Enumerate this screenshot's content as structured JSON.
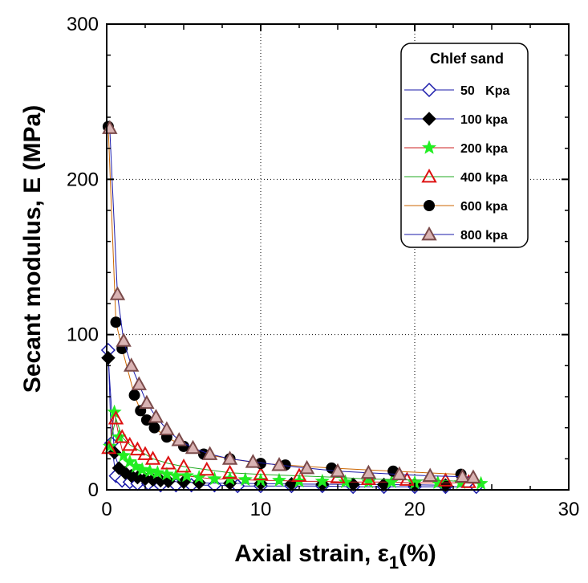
{
  "chart_data": {
    "type": "scatter",
    "title": "",
    "xlabel_main": "Axial strain, ",
    "xlabel_symbol": "ε",
    "xlabel_sub": "1",
    "xlabel_suffix": "(%)",
    "ylabel": "Secant modulus, E (MPa)",
    "xlim": [
      0,
      30
    ],
    "ylim": [
      0,
      300
    ],
    "x_ticks": [
      "0",
      "10",
      "20",
      "30"
    ],
    "y_ticks": [
      "0",
      "100",
      "200",
      "300"
    ],
    "grid": "dotted",
    "legend_title": "Chlef sand",
    "legend_position": "top-right",
    "series": [
      {
        "name": "50   Kpa",
        "marker": "diamond-open",
        "color": "#1a1aaa",
        "line_color": "#1a1aaa",
        "x": [
          0.1,
          0.3,
          0.6,
          1.0,
          1.5,
          2.0,
          2.7,
          3.5,
          4.5,
          5.5,
          7.0,
          8.5,
          10.0,
          12.0,
          14.0,
          16.0,
          18.0,
          20.0,
          22.0,
          24.0
        ],
        "y": [
          90,
          30,
          9,
          6,
          5,
          4,
          4,
          3,
          3,
          3,
          3,
          2.5,
          2.5,
          2.5,
          2.5,
          2,
          2,
          2,
          2,
          2
        ]
      },
      {
        "name": "100 kpa",
        "marker": "diamond-filled",
        "color": "#000000",
        "line_color": "#1a1aaa",
        "x": [
          0.1,
          0.5,
          0.8,
          1.2,
          1.6,
          2.0,
          2.5,
          3.0,
          3.5,
          4.0,
          5.0,
          6.0,
          8.0,
          10.0,
          12.0,
          14.0,
          16.0,
          18.0,
          20.0,
          22.0
        ],
        "y": [
          85,
          24,
          14,
          11,
          9,
          8,
          7,
          6.5,
          6,
          5.5,
          5,
          4.5,
          4.2,
          4,
          3.8,
          3.6,
          3.5,
          3.4,
          3.2,
          3
        ]
      },
      {
        "name": "200 kpa",
        "marker": "star",
        "color": "#22ee22",
        "line_color": "#cc2222",
        "x": [
          0.2,
          0.5,
          0.8,
          1.1,
          1.5,
          1.9,
          2.3,
          2.8,
          3.3,
          3.9,
          4.5,
          5.2,
          6.0,
          7.0,
          8.0,
          9.0,
          10.0,
          11.2,
          12.5,
          14.0,
          15.5,
          17.0,
          18.5,
          20.0,
          21.5,
          23.0,
          24.3
        ],
        "y": [
          28,
          50,
          34,
          22,
          18,
          15,
          13,
          12,
          11,
          10,
          9,
          9,
          8,
          7,
          7,
          6.5,
          6,
          6,
          5.5,
          5.5,
          5,
          5,
          5,
          4.5,
          4.5,
          4.5,
          4
        ]
      },
      {
        "name": "400 kpa",
        "marker": "triangle-open",
        "color": "#dd1111",
        "line_color": "#22aa22",
        "x": [
          0.15,
          0.6,
          1.0,
          1.5,
          2.0,
          2.5,
          3.0,
          4.0,
          5.0,
          6.5,
          8.0,
          10.0,
          12.5,
          15.0,
          17.0,
          19.5,
          22.0,
          23.5
        ],
        "y": [
          27,
          46,
          34,
          29,
          26,
          23,
          20,
          17,
          15,
          13,
          11,
          10,
          9,
          8,
          7,
          6.5,
          6,
          5
        ]
      },
      {
        "name": "600 kpa",
        "marker": "circle-filled",
        "color": "#000000",
        "line_color": "#cc6600",
        "x": [
          0.1,
          0.6,
          1.0,
          1.8,
          2.2,
          2.6,
          3.1,
          3.9,
          5.0,
          6.3,
          8.0,
          10.0,
          11.6,
          14.6,
          18.6,
          23.0
        ],
        "y": [
          234,
          108,
          91,
          61,
          51,
          45,
          40,
          34,
          28,
          23,
          20,
          17,
          16,
          14,
          12,
          10
        ]
      },
      {
        "name": "800 kpa",
        "marker": "triangle-brown",
        "color": "#7a4a4a",
        "line_color": "#1a1aaa",
        "x": [
          0.2,
          0.7,
          1.1,
          1.6,
          2.1,
          2.6,
          3.2,
          3.9,
          4.7,
          5.6,
          6.7,
          8.0,
          9.5,
          11.2,
          13.0,
          15.0,
          17.0,
          19.0,
          21.0,
          23.1,
          23.8
        ],
        "y": [
          233,
          126,
          96,
          80,
          68,
          56,
          47,
          39,
          32,
          27,
          23,
          20,
          18,
          16,
          14,
          12,
          11,
          10,
          9,
          8.5,
          8
        ]
      }
    ]
  }
}
